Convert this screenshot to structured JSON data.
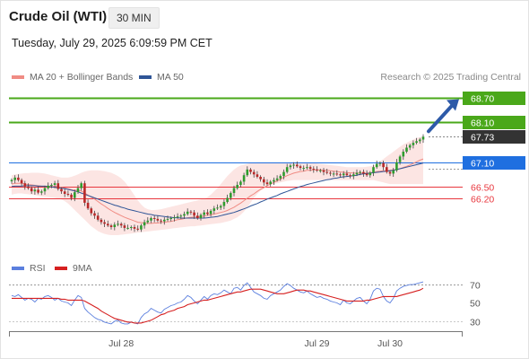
{
  "header": {
    "title": "Crude Oil (WTI)",
    "timeframe": "30 MIN",
    "timestamp": "Tuesday, July 29, 2025 6:09:59 PM CET"
  },
  "legend": {
    "ma20": "MA 20 + Bollinger Bands",
    "ma50": "MA 50",
    "rsi": "RSI",
    "ma9": "9MA"
  },
  "copyright": "Research © 2025 Trading Central",
  "colors": {
    "ma20": "#f08c84",
    "ma50": "#2f5597",
    "band": "#fbdcd9",
    "resistance": "#4aa81a",
    "current": "#333333",
    "pivot": "#1f6fe0",
    "support": "#e8373e",
    "rsi": "#5b7fde",
    "ma9": "#d62020",
    "arrow": "#2d5aa8",
    "candle_up": "#2e9c2e",
    "candle_down": "#b82828"
  },
  "chart_data": [
    {
      "type": "candlestick",
      "title": "Crude Oil (WTI)",
      "ylim": [
        65.3,
        69.0
      ],
      "x_ticks": [
        "Jul 28",
        "Jul 29",
        "Jul 30"
      ],
      "levels": [
        {
          "label": "68.70",
          "value": 68.7,
          "kind": "resistance"
        },
        {
          "label": "68.10",
          "value": 68.1,
          "kind": "resistance"
        },
        {
          "label": "67.73",
          "value": 67.73,
          "kind": "current"
        },
        {
          "label": "67.10",
          "value": 67.1,
          "kind": "pivot"
        },
        {
          "label": "66.50",
          "value": 66.5,
          "kind": "support"
        },
        {
          "label": "66.20",
          "value": 66.2,
          "kind": "support"
        }
      ],
      "close": [
        66.66,
        66.72,
        66.66,
        66.58,
        66.5,
        66.46,
        66.38,
        66.42,
        66.35,
        66.38,
        66.46,
        66.52,
        66.54,
        66.58,
        66.44,
        66.38,
        66.32,
        66.3,
        66.22,
        66.36,
        66.46,
        66.58,
        66.1,
        65.96,
        65.84,
        65.78,
        65.68,
        65.62,
        65.58,
        65.54,
        65.5,
        65.56,
        65.58,
        65.54,
        65.48,
        65.48,
        65.5,
        65.46,
        65.44,
        65.54,
        65.62,
        65.66,
        65.72,
        65.7,
        65.66,
        65.64,
        65.68,
        65.7,
        65.72,
        65.74,
        65.76,
        65.78,
        65.82,
        65.88,
        65.86,
        65.78,
        65.72,
        65.8,
        65.86,
        65.82,
        65.9,
        65.96,
        65.98,
        66.02,
        66.12,
        66.22,
        66.34,
        66.46,
        66.54,
        66.62,
        66.78,
        66.92,
        66.86,
        66.8,
        66.74,
        66.68,
        66.6,
        66.56,
        66.62,
        66.66,
        66.7,
        66.76,
        66.86,
        66.98,
        67.02,
        67.04,
        67.0,
        66.96,
        66.96,
        66.98,
        66.94,
        66.92,
        66.9,
        66.9,
        66.86,
        66.84,
        66.82,
        66.82,
        66.8,
        66.78,
        66.82,
        66.78,
        66.76,
        66.8,
        66.84,
        66.86,
        66.82,
        66.78,
        66.84,
        66.98,
        67.06,
        67.08,
        66.98,
        66.86,
        66.82,
        66.9,
        67.1,
        67.24,
        67.36,
        67.46,
        67.52,
        67.58,
        67.62,
        67.66,
        67.73
      ],
      "ma20": [
        66.56,
        66.58,
        66.58,
        66.58,
        66.56,
        66.55,
        66.54,
        66.53,
        66.52,
        66.51,
        66.5,
        66.5,
        66.5,
        66.5,
        66.5,
        66.48,
        66.46,
        66.44,
        66.42,
        66.41,
        66.4,
        66.39,
        66.34,
        66.29,
        66.24,
        66.19,
        66.13,
        66.07,
        66.02,
        65.96,
        65.91,
        65.86,
        65.82,
        65.78,
        65.74,
        65.71,
        65.68,
        65.65,
        65.62,
        65.61,
        65.6,
        65.59,
        65.59,
        65.6,
        65.6,
        65.61,
        65.62,
        65.63,
        65.64,
        65.66,
        65.68,
        65.69,
        65.71,
        65.73,
        65.74,
        65.75,
        65.75,
        65.76,
        65.77,
        65.79,
        65.8,
        65.82,
        65.84,
        65.86,
        65.88,
        65.91,
        65.95,
        65.99,
        66.04,
        66.09,
        66.15,
        66.21,
        66.27,
        66.32,
        66.38,
        66.43,
        66.47,
        66.52,
        66.56,
        66.6,
        66.64,
        66.68,
        66.73,
        66.77,
        66.8,
        66.83,
        66.85,
        66.87,
        66.88,
        66.9,
        66.9,
        66.91,
        66.91,
        66.91,
        66.9,
        66.9,
        66.89,
        66.88,
        66.87,
        66.86,
        66.85,
        66.84,
        66.84,
        66.83,
        66.83,
        66.83,
        66.83,
        66.83,
        66.84,
        66.85,
        66.87,
        66.88,
        66.89,
        66.89,
        66.9,
        66.91,
        66.92,
        66.94,
        66.97,
        67.0,
        67.03,
        67.07,
        67.11,
        67.15,
        67.18
      ],
      "ma50": [
        66.5,
        66.51,
        66.51,
        66.51,
        66.52,
        66.52,
        66.52,
        66.52,
        66.51,
        66.51,
        66.51,
        66.5,
        66.49,
        66.48,
        66.47,
        66.46,
        66.45,
        66.43,
        66.41,
        66.39,
        66.37,
        66.34,
        66.31,
        66.28,
        66.25,
        66.22,
        66.19,
        66.16,
        66.13,
        66.1,
        66.07,
        66.04,
        66.02,
        65.99,
        65.97,
        65.94,
        65.92,
        65.9,
        65.88,
        65.86,
        65.84,
        65.82,
        65.81,
        65.79,
        65.78,
        65.77,
        65.76,
        65.75,
        65.74,
        65.73,
        65.73,
        65.72,
        65.72,
        65.72,
        65.72,
        65.72,
        65.72,
        65.72,
        65.72,
        65.73,
        65.74,
        65.75,
        65.76,
        65.78,
        65.8,
        65.82,
        65.84,
        65.86,
        65.89,
        65.92,
        65.95,
        65.98,
        66.02,
        66.05,
        66.08,
        66.12,
        66.15,
        66.19,
        66.22,
        66.25,
        66.28,
        66.32,
        66.35,
        66.38,
        66.41,
        66.44,
        66.47,
        66.5,
        66.52,
        66.55,
        66.57,
        66.59,
        66.61,
        66.63,
        66.65,
        66.67,
        66.68,
        66.7,
        66.71,
        66.73,
        66.74,
        66.75,
        66.76,
        66.77,
        66.78,
        66.8,
        66.81,
        66.82,
        66.83,
        66.84,
        66.85,
        66.86,
        66.87,
        66.88,
        66.89,
        66.9,
        66.92,
        66.94,
        66.96,
        66.98,
        67.0,
        67.02,
        67.04,
        67.06,
        67.08
      ],
      "bb_upper": [
        66.78,
        66.8,
        66.81,
        66.82,
        66.83,
        66.83,
        66.84,
        66.84,
        66.84,
        66.83,
        66.82,
        66.8,
        66.78,
        66.76,
        66.74,
        66.72,
        66.72,
        66.72,
        66.74,
        66.77,
        66.8,
        66.84,
        66.87,
        66.89,
        66.9,
        66.9,
        66.9,
        66.89,
        66.88,
        66.86,
        66.84,
        66.8,
        66.76,
        66.7,
        66.62,
        66.52,
        66.4,
        66.28,
        66.16,
        66.06,
        65.98,
        65.94,
        65.92,
        65.92,
        65.93,
        65.94,
        65.96,
        65.98,
        66.0,
        66.02,
        66.04,
        66.06,
        66.08,
        66.1,
        66.12,
        66.14,
        66.16,
        66.18,
        66.2,
        66.24,
        66.3,
        66.38,
        66.46,
        66.56,
        66.66,
        66.76,
        66.84,
        66.92,
        66.98,
        67.02,
        67.04,
        67.06,
        67.08,
        67.09,
        67.1,
        67.1,
        67.1,
        67.1,
        67.1,
        67.1,
        67.1,
        67.1,
        67.1,
        67.1,
        67.1,
        67.1,
        67.1,
        67.1,
        67.1,
        67.1,
        67.09,
        67.08,
        67.07,
        67.06,
        67.05,
        67.04,
        67.03,
        67.02,
        67.01,
        67.0,
        66.99,
        66.98,
        66.98,
        66.98,
        66.98,
        66.98,
        66.98,
        66.99,
        67.0,
        67.02,
        67.06,
        67.12,
        67.18,
        67.24,
        67.3,
        67.36,
        67.42,
        67.48,
        67.54,
        67.58,
        67.62,
        67.66,
        67.7,
        67.72,
        67.74
      ],
      "bb_lower": [
        66.3,
        66.32,
        66.33,
        66.33,
        66.32,
        66.31,
        66.3,
        66.29,
        66.27,
        66.26,
        66.25,
        66.24,
        66.23,
        66.22,
        66.2,
        66.18,
        66.14,
        66.08,
        66.0,
        65.92,
        65.84,
        65.76,
        65.68,
        65.6,
        65.52,
        65.46,
        65.4,
        65.36,
        65.33,
        65.31,
        65.3,
        65.3,
        65.3,
        65.31,
        65.32,
        65.33,
        65.34,
        65.35,
        65.36,
        65.37,
        65.38,
        65.39,
        65.4,
        65.41,
        65.42,
        65.43,
        65.44,
        65.45,
        65.46,
        65.47,
        65.48,
        65.49,
        65.5,
        65.51,
        65.52,
        65.52,
        65.53,
        65.54,
        65.55,
        65.56,
        65.57,
        65.58,
        65.59,
        65.6,
        65.62,
        65.64,
        65.66,
        65.7,
        65.74,
        65.8,
        65.88,
        65.98,
        66.1,
        66.22,
        66.32,
        66.4,
        66.46,
        66.5,
        66.54,
        66.56,
        66.58,
        66.6,
        66.62,
        66.64,
        66.65,
        66.66,
        66.66,
        66.66,
        66.66,
        66.66,
        66.66,
        66.66,
        66.66,
        66.66,
        66.66,
        66.66,
        66.66,
        66.66,
        66.66,
        66.66,
        66.66,
        66.66,
        66.66,
        66.66,
        66.66,
        66.66,
        66.66,
        66.66,
        66.66,
        66.66,
        66.64,
        66.62,
        66.6,
        66.58,
        66.56,
        66.56,
        66.56,
        66.56,
        66.56,
        66.56,
        66.56,
        66.56,
        66.56,
        66.56,
        66.56
      ]
    },
    {
      "type": "line",
      "title": "RSI",
      "ylim": [
        22,
        76
      ],
      "y_ticks": [
        70,
        50,
        30
      ],
      "x_ticks": [
        "Jul 28",
        "Jul 29",
        "Jul 30"
      ],
      "series": [
        {
          "name": "RSI",
          "values": [
            58,
            57,
            59,
            56,
            53,
            55,
            54,
            51,
            55,
            54,
            57,
            58,
            56,
            53,
            55,
            52,
            51,
            50,
            47,
            53,
            58,
            56,
            44,
            40,
            37,
            34,
            32,
            31,
            29,
            28,
            27,
            30,
            31,
            28,
            27,
            27,
            29,
            28,
            27,
            34,
            38,
            40,
            44,
            42,
            40,
            39,
            43,
            45,
            47,
            48,
            50,
            51,
            54,
            58,
            56,
            52,
            49,
            53,
            57,
            54,
            58,
            60,
            59,
            61,
            64,
            62,
            60,
            66,
            67,
            64,
            69,
            72,
            67,
            62,
            60,
            58,
            55,
            54,
            58,
            60,
            62,
            64,
            68,
            71,
            69,
            66,
            64,
            62,
            61,
            63,
            60,
            58,
            56,
            57,
            55,
            54,
            52,
            51,
            50,
            48,
            53,
            50,
            49,
            52,
            55,
            56,
            52,
            49,
            54,
            63,
            66,
            65,
            57,
            52,
            50,
            55,
            63,
            66,
            68,
            69,
            70,
            70,
            71,
            72,
            73
          ]
        },
        {
          "name": "9MA",
          "values": [
            55,
            55,
            55,
            55,
            55,
            55,
            55,
            55,
            55,
            55,
            55,
            55,
            55,
            55,
            55,
            54,
            54,
            53,
            53,
            53,
            53,
            53,
            52,
            50,
            48,
            46,
            44,
            41,
            39,
            37,
            35,
            33,
            32,
            31,
            30,
            29,
            29,
            28,
            28,
            28,
            29,
            30,
            31,
            33,
            35,
            37,
            38,
            40,
            41,
            42,
            44,
            45,
            46,
            48,
            49,
            50,
            51,
            52,
            53,
            53,
            54,
            55,
            56,
            57,
            58,
            59,
            60,
            61,
            62,
            62,
            63,
            64,
            65,
            65,
            65,
            65,
            64,
            63,
            62,
            61,
            60,
            60,
            60,
            61,
            62,
            63,
            64,
            64,
            64,
            63,
            63,
            62,
            61,
            60,
            59,
            58,
            57,
            56,
            55,
            54,
            53,
            52,
            52,
            52,
            52,
            52,
            52,
            53,
            53,
            54,
            55,
            56,
            57,
            57,
            57,
            57,
            57,
            58,
            59,
            60,
            61,
            62,
            63,
            64,
            66
          ]
        }
      ]
    }
  ]
}
